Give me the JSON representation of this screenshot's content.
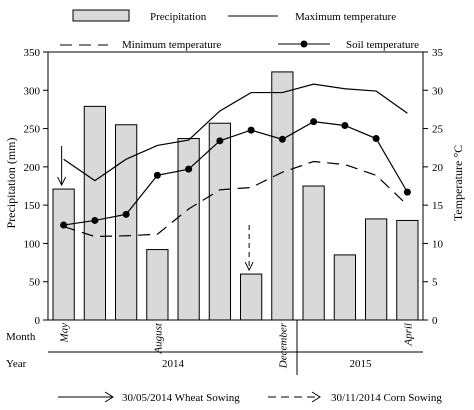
{
  "chart_data": {
    "type": "bar",
    "x": [
      0,
      1,
      2,
      3,
      4,
      5,
      6,
      7,
      8,
      9,
      10,
      11
    ],
    "series": [
      {
        "name": "Precipitation",
        "kind": "bar",
        "axis": "left",
        "values": [
          171,
          279,
          255,
          92,
          237,
          257,
          60,
          324,
          175,
          85,
          132,
          130
        ]
      },
      {
        "name": "Maximum temperature",
        "kind": "line",
        "axis": "right",
        "style": "solid",
        "values": [
          21,
          18.2,
          21,
          22.8,
          23.5,
          27.3,
          29.7,
          29.7,
          30.8,
          30.2,
          29.9,
          27
        ]
      },
      {
        "name": "Minimum temperature",
        "kind": "line",
        "axis": "right",
        "style": "dashed",
        "values": [
          12.2,
          10.9,
          11,
          11.2,
          14.5,
          17,
          17.3,
          19.3,
          20.7,
          20.3,
          18.9,
          15
        ]
      },
      {
        "name": "Soil temperature",
        "kind": "line",
        "axis": "right",
        "style": "solid-markers",
        "values": [
          12.4,
          13,
          13.8,
          18.9,
          19.7,
          23.4,
          24.8,
          23.6,
          25.9,
          25.4,
          23.7,
          16.7
        ]
      }
    ],
    "ylabel": "Precipitation (mm)",
    "ylim": [
      0,
      350
    ],
    "yticks": [
      0,
      50,
      100,
      150,
      200,
      250,
      300,
      350
    ],
    "y2label": "Temperature °C",
    "y2lim": [
      0,
      35
    ],
    "y2ticks": [
      0,
      5,
      10,
      15,
      20,
      25,
      30,
      35
    ],
    "month_row_label": "Month",
    "year_row_label": "Year",
    "month_labels": [
      {
        "text": "May",
        "index": 0
      },
      {
        "text": "August",
        "index": 3
      },
      {
        "text": "December",
        "index": 7
      },
      {
        "text": "April",
        "index": 11
      }
    ],
    "year_labels": [
      {
        "text": "2014",
        "from": 0,
        "to": 7
      },
      {
        "text": "2015",
        "from": 8,
        "to": 11
      }
    ],
    "annotations": [
      {
        "text": "30/05/2014 Wheat Sowing",
        "index": 0,
        "style": "solid"
      },
      {
        "text": "30/11/2014 Corn Sowing",
        "index": 6,
        "style": "dashed"
      }
    ],
    "legend_placement": "top"
  }
}
